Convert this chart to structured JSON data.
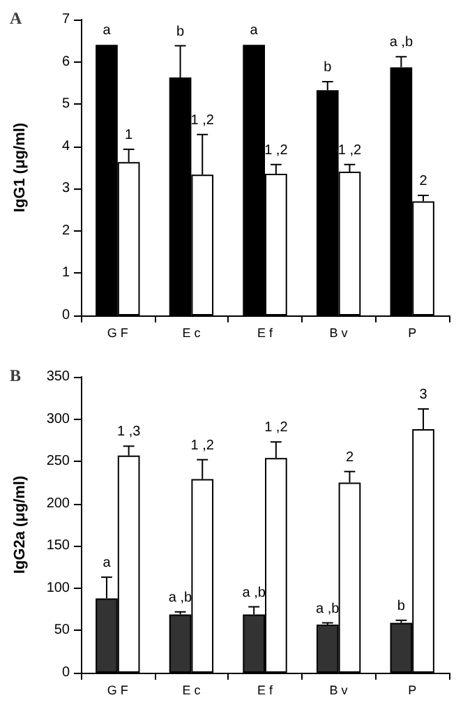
{
  "chart_data": [
    {
      "type": "bar",
      "title": "A",
      "ylabel": "IgG1 (μg/ml)",
      "categories": [
        "G F",
        "E c",
        "E f",
        "B v",
        "P"
      ],
      "ylim": [
        0,
        7
      ],
      "yticks": [
        0,
        1,
        2,
        3,
        4,
        5,
        6,
        7
      ],
      "grid": false,
      "series": [
        {
          "color": "#000000",
          "values": [
            6.4,
            5.63,
            6.4,
            5.33,
            5.87
          ],
          "errors": [
            null,
            0.75,
            null,
            0.2,
            0.25
          ]
        },
        {
          "color": "#ffffff",
          "values": [
            3.63,
            3.33,
            3.35,
            3.4,
            2.7
          ],
          "errors": [
            0.3,
            0.95,
            0.22,
            0.17,
            0.14
          ]
        }
      ],
      "annotations": [
        {
          "text": "a",
          "x": "G F",
          "y": 6.4
        },
        {
          "text": "b",
          "x": "E c",
          "y": 6.38
        },
        {
          "text": "a",
          "x": "E f",
          "y": 6.4
        },
        {
          "text": "b",
          "x": "B v",
          "y": 5.53
        },
        {
          "text": "a ,b",
          "x": "P",
          "y": 6.12
        },
        {
          "text": "1",
          "x": "G F",
          "y": 3.93
        },
        {
          "text": "1 ,2",
          "x": "E c",
          "y": 4.28
        },
        {
          "text": "1 ,2",
          "x": "E f",
          "y": 3.57
        },
        {
          "text": "1 ,2",
          "x": "B v",
          "y": 3.57
        },
        {
          "text": "2",
          "x": "P",
          "y": 2.84
        }
      ]
    },
    {
      "type": "bar",
      "title": "B",
      "ylabel": "IgG2a (μg/ml)",
      "categories": [
        "G F",
        "E c",
        "E f",
        "B v",
        "P"
      ],
      "ylim": [
        0,
        350
      ],
      "yticks": [
        0,
        50,
        100,
        150,
        200,
        250,
        300,
        350
      ],
      "grid": false,
      "series": [
        {
          "color": "#333333",
          "values": [
            88,
            69,
            69,
            57,
            59
          ],
          "errors": [
            25,
            3,
            9,
            2,
            3
          ]
        },
        {
          "color": "#ffffff",
          "values": [
            257,
            229,
            254,
            225,
            288
          ],
          "errors": [
            11,
            23,
            19,
            13,
            24
          ]
        }
      ],
      "annotations": [
        {
          "text": "a",
          "x": "G F",
          "y": 113
        },
        {
          "text": "a ,b",
          "x": "E c",
          "y": 72
        },
        {
          "text": "a ,b",
          "x": "E f",
          "y": 78
        },
        {
          "text": "a ,b",
          "x": "B v",
          "y": 59
        },
        {
          "text": "b",
          "x": "P",
          "y": 62
        },
        {
          "text": "1 ,3",
          "x": "G F",
          "y": 268
        },
        {
          "text": "1 ,2",
          "x": "E c",
          "y": 252
        },
        {
          "text": "1 ,2",
          "x": "E f",
          "y": 273
        },
        {
          "text": "2",
          "x": "B v",
          "y": 238
        },
        {
          "text": "3",
          "x": "P",
          "y": 312
        }
      ]
    }
  ]
}
